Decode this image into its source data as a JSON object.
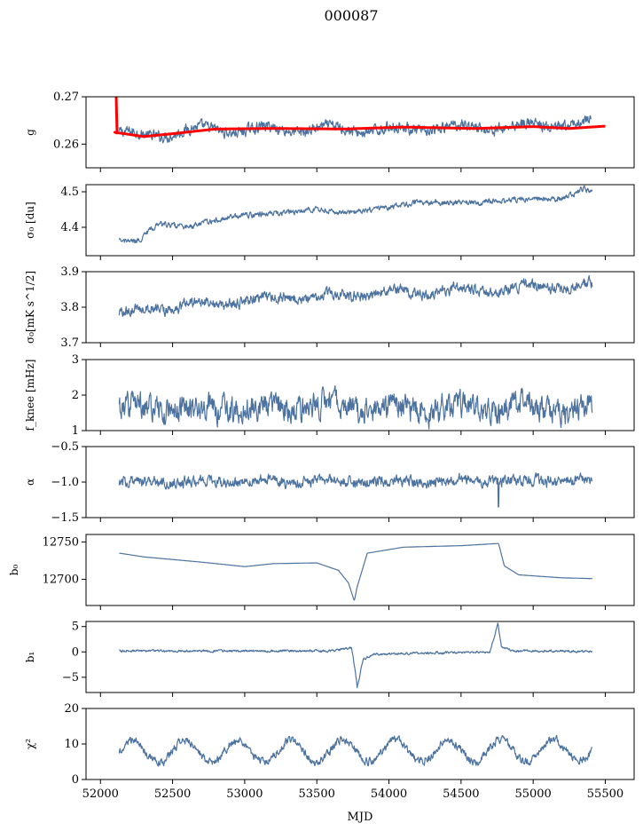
{
  "title": "000087",
  "xlabel": "MJD",
  "colors": {
    "series": "#4c72a0",
    "fit": "#ff0000"
  },
  "chart_data": [
    {
      "type": "line",
      "ylabel": "g",
      "ylim": [
        0.255,
        0.27
      ],
      "yticks": [
        0.26,
        0.27
      ],
      "ytick_labels": [
        "0.26",
        "0.27"
      ],
      "series": [
        {
          "style": "data",
          "gen": "noise",
          "base": 0.2625,
          "drift": 0.0015,
          "osc": 0.0007,
          "noise": 0.0009,
          "knots": [
            [
              52130,
              0.2625
            ],
            [
              52300,
              0.2615
            ],
            [
              52600,
              0.263
            ],
            [
              53500,
              0.2632
            ],
            [
              54000,
              0.263
            ],
            [
              54500,
              0.2635
            ],
            [
              55400,
              0.2642
            ]
          ]
        },
        {
          "style": "fit",
          "gen": "smooth",
          "knots": [
            [
              52100,
              0.2625
            ],
            [
              52300,
              0.2616
            ],
            [
              52500,
              0.2622
            ],
            [
              52800,
              0.2632
            ],
            [
              53200,
              0.2633
            ],
            [
              53700,
              0.2632
            ],
            [
              54100,
              0.2636
            ],
            [
              54600,
              0.2633
            ],
            [
              55000,
              0.2637
            ],
            [
              55250,
              0.2633
            ],
            [
              55500,
              0.2638
            ]
          ],
          "spike": {
            "x": 52115,
            "y": 0.27
          }
        }
      ]
    },
    {
      "type": "line",
      "ylabel": "σ₀ [du]",
      "ylim": [
        4.32,
        4.52
      ],
      "yticks": [
        4.4,
        4.5
      ],
      "ytick_labels": [
        "4.4",
        "4.5"
      ],
      "series": [
        {
          "style": "data",
          "gen": "noise",
          "noise": 0.006,
          "osc": 0.0,
          "knots": [
            [
              52130,
              4.36
            ],
            [
              52250,
              4.36
            ],
            [
              52400,
              4.41
            ],
            [
              52600,
              4.4
            ],
            [
              52900,
              4.43
            ],
            [
              53200,
              4.44
            ],
            [
              53500,
              4.45
            ],
            [
              53700,
              4.44
            ],
            [
              53900,
              4.45
            ],
            [
              54200,
              4.47
            ],
            [
              54600,
              4.47
            ],
            [
              55000,
              4.48
            ],
            [
              55200,
              4.48
            ],
            [
              55350,
              4.51
            ],
            [
              55410,
              4.5
            ]
          ]
        }
      ]
    },
    {
      "type": "line",
      "ylabel": "σ₀[mK s^1/2]",
      "ylim": [
        3.7,
        3.9
      ],
      "yticks": [
        3.7,
        3.8,
        3.9
      ],
      "ytick_labels": [
        "3.7",
        "3.8",
        "3.9"
      ],
      "series": [
        {
          "style": "data",
          "gen": "noise",
          "noise": 0.012,
          "osc": 0.008,
          "knots": [
            [
              52130,
              3.78
            ],
            [
              52400,
              3.8
            ],
            [
              52700,
              3.81
            ],
            [
              53000,
              3.82
            ],
            [
              53500,
              3.83
            ],
            [
              54000,
              3.84
            ],
            [
              54500,
              3.845
            ],
            [
              55000,
              3.855
            ],
            [
              55410,
              3.86
            ]
          ]
        }
      ]
    },
    {
      "type": "line",
      "ylabel": "f_knee [mHz]",
      "ylim": [
        1,
        3
      ],
      "yticks": [
        1,
        2,
        3
      ],
      "ytick_labels": [
        "1",
        "2",
        "3"
      ],
      "series": [
        {
          "style": "data",
          "gen": "noise",
          "noise": 0.28,
          "osc": 0.1,
          "knots": [
            [
              52130,
              1.6
            ],
            [
              53000,
              1.6
            ],
            [
              53600,
              1.7
            ],
            [
              54200,
              1.6
            ],
            [
              54800,
              1.65
            ],
            [
              55410,
              1.65
            ]
          ]
        }
      ]
    },
    {
      "type": "line",
      "ylabel": "α",
      "ylim": [
        -1.5,
        -0.5
      ],
      "yticks": [
        -1.5,
        -1.0,
        -0.5
      ],
      "ytick_labels": [
        "−1.5",
        "−1.0",
        "−0.5"
      ],
      "series": [
        {
          "style": "data",
          "gen": "noise",
          "noise": 0.06,
          "osc": 0.02,
          "knots": [
            [
              52130,
              -1.0
            ],
            [
              55410,
              -0.98
            ]
          ],
          "spike": {
            "x": 54760,
            "y": -1.35
          }
        }
      ]
    },
    {
      "type": "line",
      "ylabel": "b₀",
      "ylim": [
        12665,
        12760
      ],
      "yticks": [
        12700,
        12750
      ],
      "ytick_labels": [
        "12700",
        "12750"
      ],
      "series": [
        {
          "style": "data",
          "gen": "smooth",
          "knots": [
            [
              52130,
              12735
            ],
            [
              52300,
              12730
            ],
            [
              52700,
              12723
            ],
            [
              53000,
              12717
            ],
            [
              53200,
              12721
            ],
            [
              53500,
              12722
            ],
            [
              53650,
              12712
            ],
            [
              53720,
              12695
            ],
            [
              53760,
              12671
            ],
            [
              53780,
              12690
            ],
            [
              53850,
              12735
            ],
            [
              54100,
              12743
            ],
            [
              54500,
              12745
            ],
            [
              54760,
              12748
            ],
            [
              54800,
              12718
            ],
            [
              54900,
              12706
            ],
            [
              55200,
              12702
            ],
            [
              55410,
              12701
            ]
          ]
        }
      ]
    },
    {
      "type": "line",
      "ylabel": "b₁",
      "ylim": [
        -8,
        6
      ],
      "yticks": [
        -5,
        0,
        5
      ],
      "ytick_labels": [
        "−5",
        "0",
        "5"
      ],
      "series": [
        {
          "style": "data",
          "gen": "noise",
          "noise": 0.18,
          "osc": 0.0,
          "knots": [
            [
              52130,
              0.2
            ],
            [
              53600,
              0.2
            ],
            [
              53740,
              0.8
            ],
            [
              53760,
              -2.5
            ],
            [
              53780,
              -7.0
            ],
            [
              53820,
              -1.5
            ],
            [
              53900,
              -0.4
            ],
            [
              54700,
              0.0
            ],
            [
              54755,
              5.5
            ],
            [
              54780,
              1.0
            ],
            [
              54850,
              0.2
            ],
            [
              55410,
              0.1
            ]
          ]
        }
      ]
    },
    {
      "type": "line",
      "ylabel": "χ²",
      "ylim": [
        0,
        20
      ],
      "yticks": [
        0,
        10,
        20
      ],
      "ytick_labels": [
        "0",
        "10",
        "20"
      ],
      "series": [
        {
          "style": "data",
          "gen": "noise",
          "noise": 0.9,
          "osc": 3.0,
          "period": 365,
          "knots": [
            [
              52130,
              7.8
            ],
            [
              55410,
              8.2
            ]
          ]
        }
      ]
    }
  ],
  "xaxis": {
    "xlim": [
      51900,
      55700
    ],
    "ticks": [
      52000,
      52500,
      53000,
      53500,
      54000,
      54500,
      55000,
      55500
    ]
  }
}
